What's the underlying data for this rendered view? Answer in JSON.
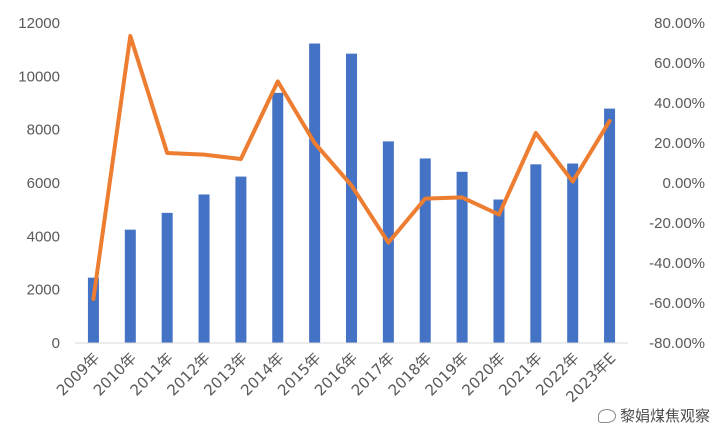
{
  "chart_data": {
    "type": "bar",
    "categories": [
      "2009年",
      "2010年",
      "2011年",
      "2012年",
      "2013年",
      "2014年",
      "2015年",
      "2016年",
      "2017年",
      "2018年",
      "2019年",
      "2020年",
      "2021年",
      "2022年",
      "2023年E"
    ],
    "series": [
      {
        "type": "bar",
        "axis": "left",
        "color": "#4472C4",
        "values": [
          2450,
          4250,
          4880,
          5570,
          6240,
          9380,
          11230,
          10850,
          7560,
          6920,
          6420,
          5380,
          6700,
          6730,
          8790
        ]
      },
      {
        "type": "line",
        "axis": "right",
        "color": "#ED7D31",
        "values": [
          -58.0,
          73.5,
          15.0,
          14.2,
          12.0,
          50.8,
          20.0,
          -1.2,
          -29.8,
          -7.8,
          -7.2,
          -15.8,
          25.0,
          0.7,
          31.0
        ]
      }
    ],
    "y_left": {
      "ticks": [
        "0",
        "2000",
        "4000",
        "6000",
        "8000",
        "10000",
        "12000"
      ],
      "ylim": [
        0,
        12000
      ]
    },
    "y_right": {
      "ticks": [
        "-80.00%",
        "-60.00%",
        "-40.00%",
        "-20.00%",
        "0.00%",
        "20.00%",
        "40.00%",
        "60.00%",
        "80.00%"
      ],
      "ylim": [
        -80,
        80
      ]
    },
    "grid": false,
    "legend": "none"
  },
  "watermark": {
    "text": "黎娟煤焦观察"
  }
}
